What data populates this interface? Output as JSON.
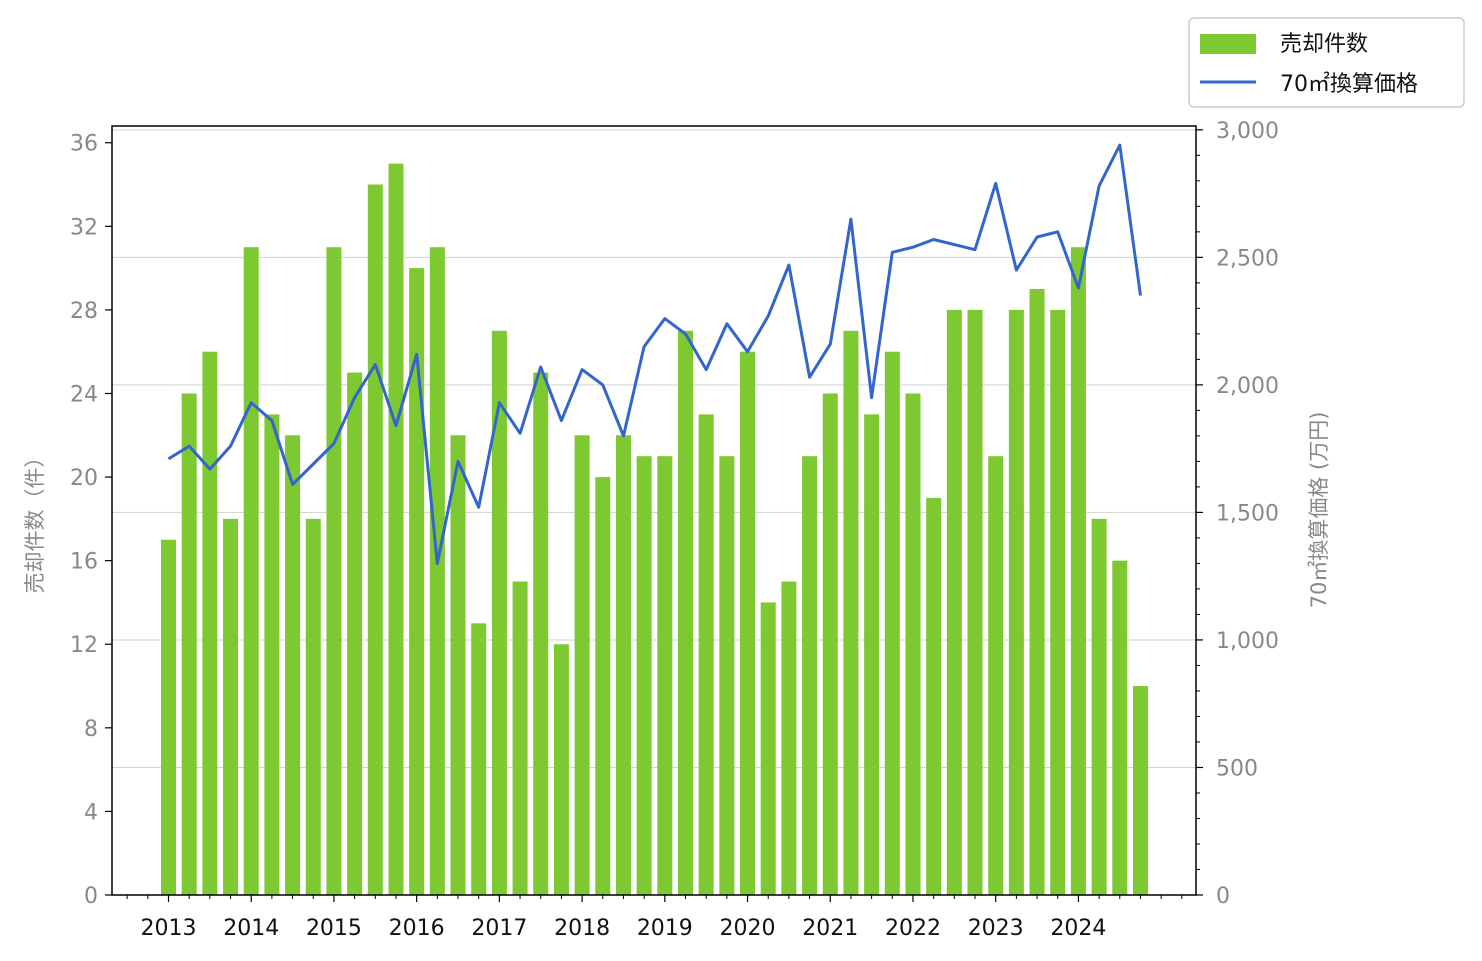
{
  "colors": {
    "bar": "#7ec832",
    "line": "#3366cc",
    "tick_text_left_right": "#888888",
    "tick_text_bottom": "#111111",
    "grid": "#d3d3d3"
  },
  "legend": {
    "placement": "top-right, outside plot",
    "items": [
      {
        "label": "売却件数",
        "kind": "bar",
        "color": "#7ec832"
      },
      {
        "label": "70㎡換算価格",
        "kind": "line",
        "color": "#3366cc"
      }
    ]
  },
  "chart_data": {
    "type": "bar",
    "title": "",
    "xlabel": "",
    "ylabel": "売却件数（件）",
    "y2label": "70㎡換算価格 (万円)",
    "ylim": [
      0,
      36.8
    ],
    "y2lim": [
      0,
      3015
    ],
    "yticks": [
      0,
      4,
      8,
      12,
      16,
      20,
      24,
      28,
      32,
      36
    ],
    "y2ticks": [
      "0",
      "500",
      "1,000",
      "1,500",
      "2,000",
      "2,500",
      "3,000"
    ],
    "x_tick_labels": [
      "2013",
      "2014",
      "2015",
      "2016",
      "2017",
      "2018",
      "2019",
      "2020",
      "2021",
      "2022",
      "2023",
      "2024"
    ],
    "grid": "horizontal, right axis",
    "categories": [
      "2013Q1",
      "2013Q2",
      "2013Q3",
      "2013Q4",
      "2014Q1",
      "2014Q2",
      "2014Q3",
      "2014Q4",
      "2015Q1",
      "2015Q2",
      "2015Q3",
      "2015Q4",
      "2016Q1",
      "2016Q2",
      "2016Q3",
      "2016Q4",
      "2017Q1",
      "2017Q2",
      "2017Q3",
      "2017Q4",
      "2018Q1",
      "2018Q2",
      "2018Q3",
      "2018Q4",
      "2019Q1",
      "2019Q2",
      "2019Q3",
      "2019Q4",
      "2020Q1",
      "2020Q2",
      "2020Q3",
      "2020Q4",
      "2021Q1",
      "2021Q2",
      "2021Q3",
      "2021Q4",
      "2022Q1",
      "2022Q2",
      "2022Q3",
      "2022Q4",
      "2023Q1",
      "2023Q2",
      "2023Q3",
      "2023Q4",
      "2024Q1",
      "2024Q2",
      "2024Q3",
      "2024Q4"
    ],
    "series": [
      {
        "name": "売却件数",
        "type": "bar",
        "axis": "left",
        "values": [
          17,
          24,
          26,
          18,
          31,
          23,
          22,
          18,
          31,
          25,
          34,
          35,
          30,
          31,
          22,
          13,
          27,
          15,
          25,
          12,
          22,
          20,
          22,
          21,
          21,
          27,
          23,
          21,
          26,
          14,
          15,
          21,
          24,
          27,
          23,
          26,
          24,
          19,
          28,
          28,
          21,
          28,
          29,
          28,
          31,
          18,
          16,
          10
        ]
      },
      {
        "name": "70㎡換算価格",
        "type": "line",
        "axis": "right",
        "values": [
          1710,
          1760,
          1670,
          1760,
          1930,
          1860,
          1610,
          1690,
          1770,
          1950,
          2080,
          1840,
          2120,
          1300,
          1700,
          1520,
          1930,
          1810,
          2070,
          1860,
          2060,
          2000,
          1800,
          2150,
          2260,
          2200,
          2060,
          2240,
          2130,
          2270,
          2470,
          2030,
          2160,
          2650,
          1950,
          2520,
          2540,
          2570,
          2550,
          2530,
          2790,
          2450,
          2580,
          2600,
          2380,
          2780,
          2940,
          2350
        ]
      }
    ]
  }
}
